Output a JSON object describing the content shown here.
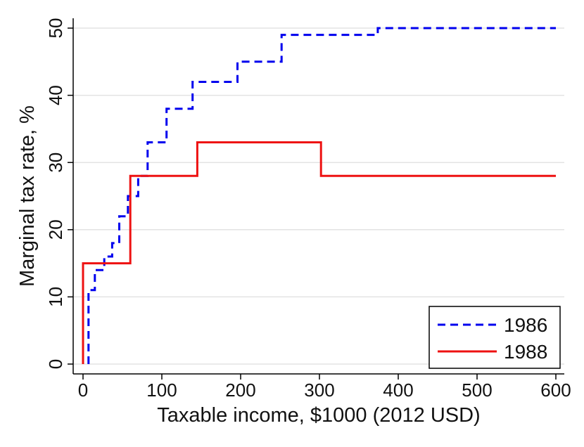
{
  "chart_data": {
    "type": "line",
    "title": "",
    "xlabel": "Taxable income, $1000 (2012 USD)",
    "ylabel": "Marginal tax rate, %",
    "xlim": [
      0,
      600
    ],
    "ylim": [
      0,
      50
    ],
    "xticks": [
      0,
      100,
      200,
      300,
      400,
      500,
      600
    ],
    "yticks": [
      0,
      10,
      20,
      30,
      40,
      50
    ],
    "grid": true,
    "legend_position": "bottom-right",
    "series": [
      {
        "name": "1986",
        "style": "dashed",
        "color": "#0000ee",
        "steps": [
          [
            7,
            0
          ],
          [
            7,
            11
          ],
          [
            15,
            11
          ],
          [
            15,
            14
          ],
          [
            27,
            14
          ],
          [
            27,
            16
          ],
          [
            37,
            16
          ],
          [
            37,
            18
          ],
          [
            46,
            18
          ],
          [
            46,
            22
          ],
          [
            57,
            22
          ],
          [
            57,
            25
          ],
          [
            70,
            25
          ],
          [
            70,
            28
          ],
          [
            82,
            28
          ],
          [
            82,
            33
          ],
          [
            106,
            33
          ],
          [
            106,
            38
          ],
          [
            139,
            38
          ],
          [
            139,
            42
          ],
          [
            196,
            42
          ],
          [
            196,
            45
          ],
          [
            252,
            45
          ],
          [
            252,
            49
          ],
          [
            374,
            49
          ],
          [
            374,
            50
          ],
          [
            600,
            50
          ]
        ]
      },
      {
        "name": "1988",
        "style": "solid",
        "color": "#ee1111",
        "steps": [
          [
            0,
            0
          ],
          [
            0,
            15
          ],
          [
            60,
            15
          ],
          [
            60,
            28
          ],
          [
            145,
            28
          ],
          [
            145,
            33
          ],
          [
            302,
            33
          ],
          [
            302,
            28
          ],
          [
            600,
            28
          ]
        ]
      }
    ]
  }
}
